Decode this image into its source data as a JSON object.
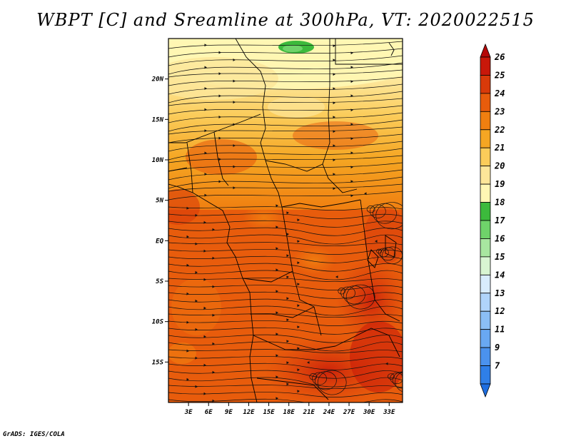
{
  "title": "WBPT [C] and Sreamline at 300hPa, VT: 2020022515",
  "credit": "GrADS: IGES/COLA",
  "map": {
    "lon_labels": [
      "3E",
      "6E",
      "9E",
      "12E",
      "15E",
      "18E",
      "21E",
      "24E",
      "27E",
      "30E",
      "33E"
    ],
    "lat_labels": [
      "20N",
      "15N",
      "10N",
      "5N",
      "EQ",
      "5S",
      "10S",
      "15S"
    ],
    "extent": {
      "lon_min": 0,
      "lon_max": 35,
      "lat_min": -20,
      "lat_max": 25
    },
    "field": "wet-bulb potential temperature",
    "overlay": "streamlines",
    "coastline_color": "#000000"
  },
  "colorbar": {
    "labels": [
      "7",
      "9",
      "11",
      "12",
      "13",
      "14",
      "15",
      "16",
      "17",
      "18",
      "19",
      "20",
      "21",
      "22",
      "23",
      "24",
      "25",
      "26"
    ],
    "colors": [
      "#1e6ee0",
      "#2f7fe8",
      "#4b92ee",
      "#69a8f2",
      "#8bbef6",
      "#b0d4fa",
      "#d8ecfd",
      "#d8f5d2",
      "#a8e6a0",
      "#6fd36a",
      "#3cba3c",
      "#fff7b4",
      "#fde699",
      "#fbcc5a",
      "#f5a623",
      "#f07f10",
      "#e85c0c",
      "#d83a0a",
      "#c8180a",
      "#b50808"
    ]
  }
}
